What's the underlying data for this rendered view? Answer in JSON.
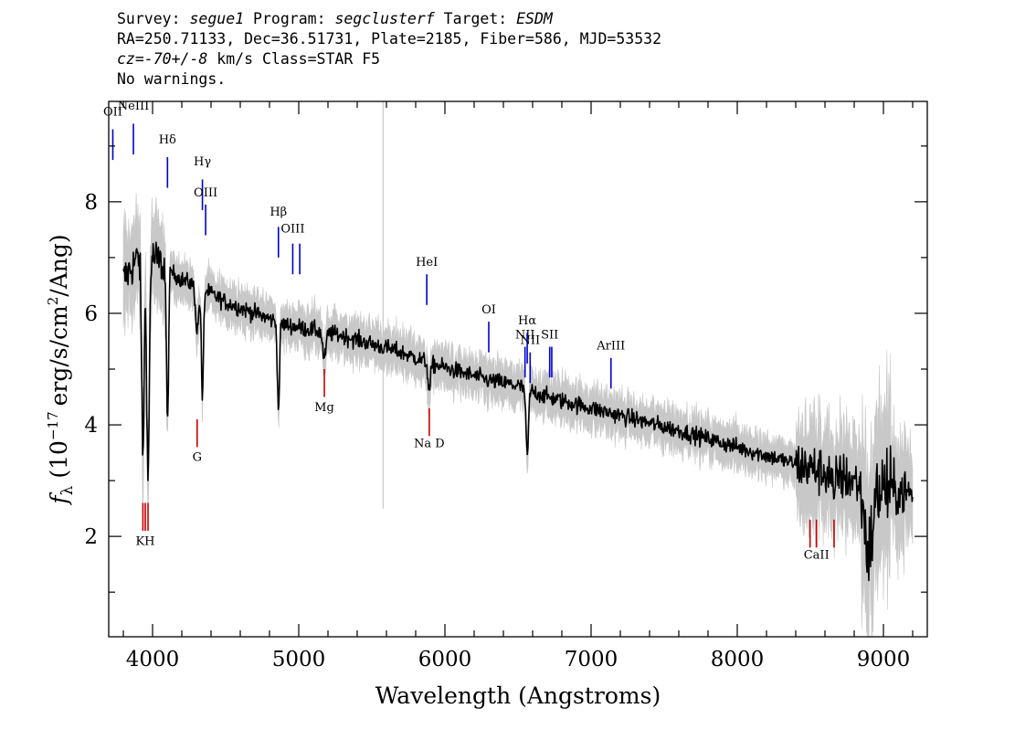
{
  "header": {
    "line1": [
      {
        "label": "Survey: ",
        "value": "segue1"
      },
      {
        "label": " Program: ",
        "value": "segclusterf"
      },
      {
        "label": " Target: ",
        "value": "ESDM"
      }
    ],
    "line2": "RA=250.71133, Dec=36.51731, Plate=2185, Fiber=586, MJD=53532",
    "line3_value": "cz=-70+/-8",
    "line3_rest": " km/s Class=STAR F5",
    "line4": "No warnings."
  },
  "chart_data": {
    "type": "line",
    "xlabel": "Wavelength (Angstroms)",
    "ylabel_parts": {
      "f": "f",
      "sub": "λ",
      "pre": "(10",
      "exp1": "−17",
      "mid": "erg/s/cm",
      "exp2": "2",
      "post": "/Ang)"
    },
    "xlim": [
      3700,
      9300
    ],
    "ylim": [
      0.2,
      9.8
    ],
    "xticks": [
      4000,
      5000,
      6000,
      7000,
      8000,
      9000
    ],
    "yticks": [
      2,
      4,
      6,
      8
    ],
    "x_minor_step": 200,
    "y_minor_step": 1,
    "grid": false,
    "colors": {
      "flux": "#000000",
      "error": "#c8c8c8",
      "emission": "#0000cc",
      "absorption": "#cc0000"
    },
    "continuum": [
      [
        3800,
        6.6
      ],
      [
        3900,
        7.0
      ],
      [
        4000,
        7.0
      ],
      [
        4100,
        6.8
      ],
      [
        4200,
        6.6
      ],
      [
        4300,
        6.5
      ],
      [
        4500,
        6.2
      ],
      [
        4700,
        6.0
      ],
      [
        4900,
        5.8
      ],
      [
        5100,
        5.7
      ],
      [
        5300,
        5.6
      ],
      [
        5500,
        5.45
      ],
      [
        5700,
        5.3
      ],
      [
        5900,
        5.1
      ],
      [
        6100,
        4.95
      ],
      [
        6300,
        4.8
      ],
      [
        6500,
        4.7
      ],
      [
        6700,
        4.5
      ],
      [
        7000,
        4.3
      ],
      [
        7300,
        4.1
      ],
      [
        7600,
        3.9
      ],
      [
        8000,
        3.6
      ],
      [
        8400,
        3.3
      ],
      [
        8800,
        3.0
      ],
      [
        9200,
        2.75
      ]
    ],
    "absorption_features": [
      {
        "x": 3934,
        "depth": 3.5,
        "width": 12
      },
      {
        "x": 3969,
        "depth": 4.0,
        "width": 12
      },
      {
        "x": 4102,
        "depth": 2.8,
        "width": 10
      },
      {
        "x": 4305,
        "depth": 0.8,
        "width": 15
      },
      {
        "x": 4341,
        "depth": 2.0,
        "width": 10
      },
      {
        "x": 4861,
        "depth": 1.6,
        "width": 10
      },
      {
        "x": 5175,
        "depth": 0.5,
        "width": 15
      },
      {
        "x": 5893,
        "depth": 0.5,
        "width": 12
      },
      {
        "x": 6563,
        "depth": 1.2,
        "width": 12
      },
      {
        "x": 8662,
        "depth": 0.6,
        "width": 10
      },
      {
        "x": 8900,
        "depth": 1.2,
        "width": 40
      }
    ],
    "sky_line": {
      "x": 5577
    },
    "line_markers": [
      {
        "label": "OII",
        "x": 3728,
        "y": 9.3,
        "label_y": 9.55,
        "kind": "emission"
      },
      {
        "label": "NeIII",
        "x": 3869,
        "y": 9.4,
        "label_y": 9.65,
        "kind": "emission"
      },
      {
        "label": "Hδ",
        "x": 4102,
        "y": 8.8,
        "label_y": 9.05,
        "kind": "emission"
      },
      {
        "label": "Hγ",
        "x": 4341,
        "y": 8.4,
        "label_y": 8.65,
        "kind": "emission"
      },
      {
        "label": "OIII",
        "x": 4363,
        "y": 7.95,
        "label_y": 8.1,
        "kind": "emission"
      },
      {
        "label": "Hβ",
        "x": 4861,
        "y": 7.55,
        "label_y": 7.75,
        "kind": "emission"
      },
      {
        "label": "OIII",
        "x": 4959,
        "y": 7.25,
        "label_y": 7.45,
        "kind": "emission"
      },
      {
        "label": "",
        "x": 5007,
        "y": 7.25,
        "label_y": 7.45,
        "kind": "emission"
      },
      {
        "label": "HeI",
        "x": 5876,
        "y": 6.7,
        "label_y": 6.85,
        "kind": "emission"
      },
      {
        "label": "OI",
        "x": 6300,
        "y": 5.85,
        "label_y": 6.0,
        "kind": "emission"
      },
      {
        "label": "NII",
        "x": 6548,
        "y": 5.4,
        "label_y": 5.55,
        "kind": "emission"
      },
      {
        "label": "Hα",
        "x": 6563,
        "y": 5.65,
        "label_y": 5.8,
        "kind": "emission"
      },
      {
        "label": "NII",
        "x": 6583,
        "y": 5.3,
        "label_y": 5.45,
        "kind": "emission"
      },
      {
        "label": "SII",
        "x": 6717,
        "y": 5.4,
        "label_y": 5.55,
        "kind": "emission"
      },
      {
        "label": "",
        "x": 6731,
        "y": 5.4,
        "label_y": 5.55,
        "kind": "emission"
      },
      {
        "label": "ArIII",
        "x": 7136,
        "y": 5.2,
        "label_y": 5.35,
        "kind": "emission"
      },
      {
        "label": "",
        "x": 3934,
        "y": 2.6,
        "label_y": 1.85,
        "kind": "absorption"
      },
      {
        "label": "KH",
        "x": 3950,
        "y": 2.6,
        "label_y": 1.85,
        "kind": "absorption"
      },
      {
        "label": "",
        "x": 3969,
        "y": 2.6,
        "label_y": 1.85,
        "kind": "absorption"
      },
      {
        "label": "G",
        "x": 4305,
        "y": 4.1,
        "label_y": 3.35,
        "kind": "absorption"
      },
      {
        "label": "Mg",
        "x": 5175,
        "y": 5.0,
        "label_y": 4.25,
        "kind": "absorption"
      },
      {
        "label": "Na D",
        "x": 5893,
        "y": 4.3,
        "label_y": 3.6,
        "kind": "absorption"
      },
      {
        "label": "",
        "x": 8498,
        "y": 2.3,
        "label_y": 1.6,
        "kind": "absorption"
      },
      {
        "label": "CaII",
        "x": 8542,
        "y": 2.3,
        "label_y": 1.6,
        "kind": "absorption"
      },
      {
        "label": "",
        "x": 8662,
        "y": 2.3,
        "label_y": 1.6,
        "kind": "absorption"
      }
    ]
  }
}
